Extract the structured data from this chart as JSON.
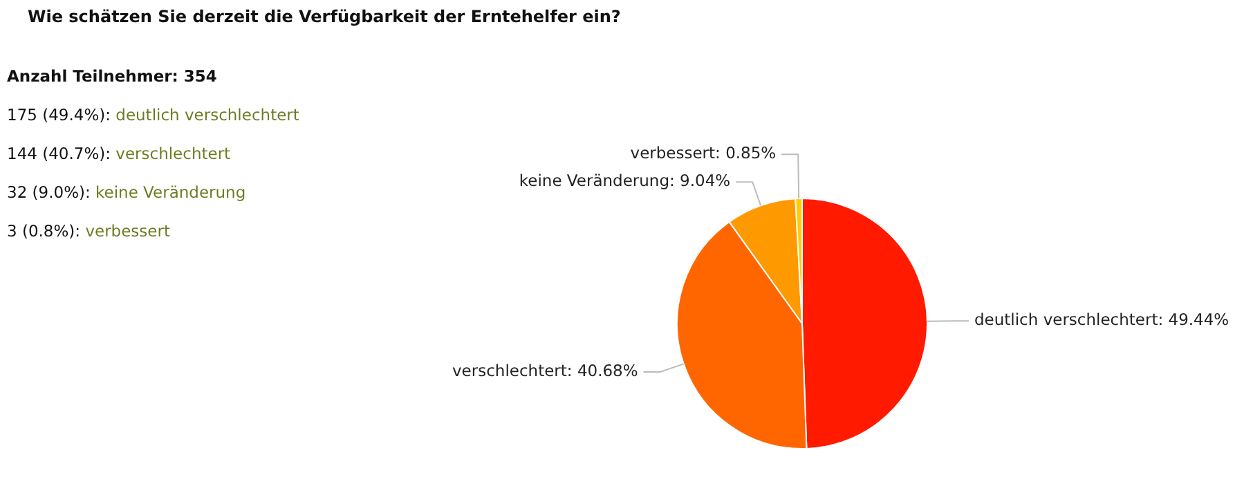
{
  "chart_data": {
    "type": "pie",
    "title": "Wie schätzen Sie derzeit die Verfügbarkeit der Erntehelfer ein?",
    "categories": [
      "deutlich verschlechtert",
      "verschlechtert",
      "keine Veränderung",
      "verbessert"
    ],
    "values": [
      49.44,
      40.68,
      9.04,
      0.85
    ],
    "value_labels": [
      ": 49.44%",
      ": 40.68%",
      ": 9.04%",
      ": 0.85%"
    ],
    "colors": [
      "#ff1a00",
      "#ff6600",
      "#ff9900",
      "#ffcc00"
    ],
    "legend": false,
    "annotations": [
      "Anzahl Teilnehmer: 354",
      "175 (49.4%): deutlich verschlechtert",
      "144 (40.7%): verschlechtert",
      "32 (9.0%): keine Veränderung",
      "3 (0.8%): verbessert"
    ]
  }
}
